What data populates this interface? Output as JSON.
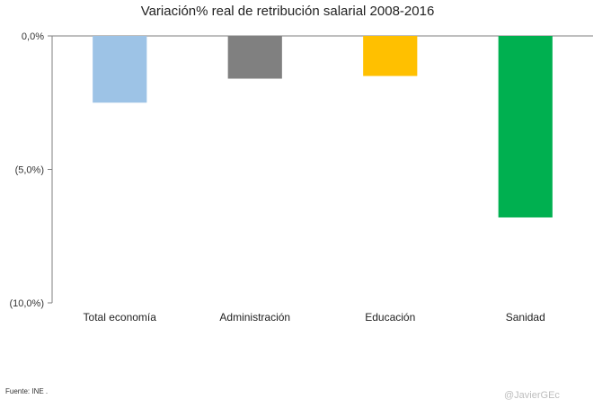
{
  "chart_data": {
    "type": "bar",
    "title": "Variación%  real de retribución salarial 2008-2016",
    "categories": [
      "Total economía",
      "Administración",
      "Educación",
      "Sanidad"
    ],
    "values": [
      -2.5,
      -1.6,
      -1.5,
      -6.8
    ],
    "colors": [
      "#9dc3e6",
      "#808080",
      "#ffc000",
      "#00b050"
    ],
    "ylim": [
      -10.0,
      0.0
    ],
    "yticks": [
      {
        "value": 0.0,
        "label": "0,0%"
      },
      {
        "value": -5.0,
        "label": "(5,0%)"
      },
      {
        "value": -10.0,
        "label": "(10,0%)"
      }
    ],
    "xlabel": "",
    "ylabel": "",
    "grid": false
  },
  "source_note": "Fuente: INE .",
  "watermark": "@JavierGEc"
}
